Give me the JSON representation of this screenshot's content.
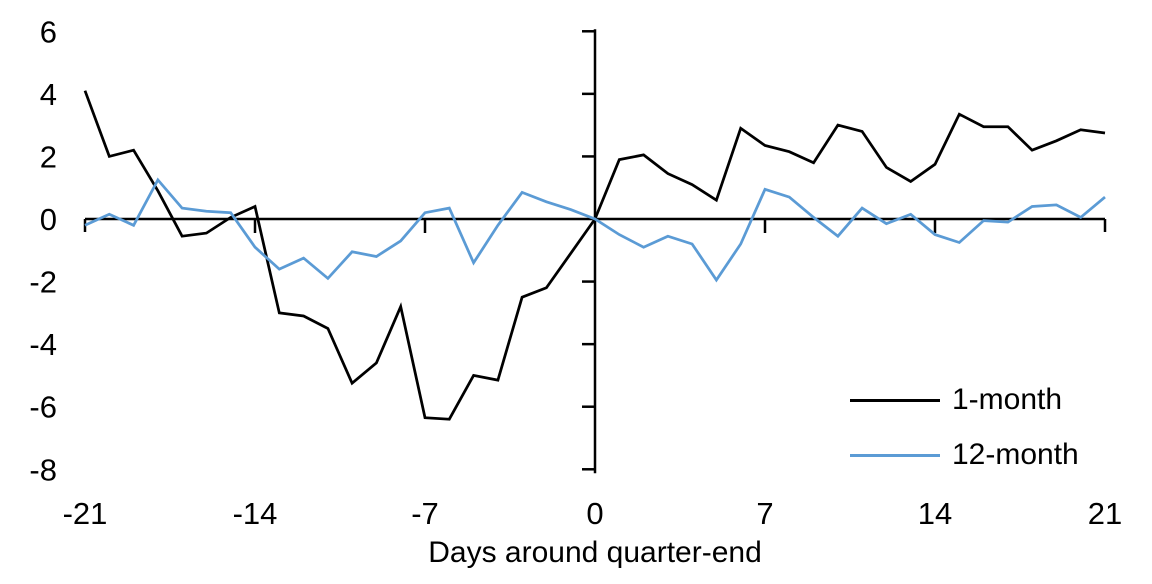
{
  "chart_data": {
    "type": "line",
    "title": "",
    "xlabel": "Days around quarter-end",
    "ylabel": "",
    "grid": false,
    "legend_position": "inside-right-bottom",
    "xlim": [
      -21,
      21
    ],
    "ylim": [
      -8,
      6
    ],
    "yticks": [
      6,
      4,
      2,
      0,
      -2,
      -4,
      -6,
      -8
    ],
    "xtick_labels": [
      -21,
      -14,
      -7,
      0,
      7,
      14,
      21
    ],
    "xtick_marks": [
      -14,
      -7,
      7,
      14
    ],
    "axis_color": "#000000",
    "x": [
      -21,
      -20,
      -19,
      -18,
      -17,
      -16,
      -15,
      -14,
      -13,
      -12,
      -11,
      -10,
      -9,
      -8,
      -7,
      -6,
      -5,
      -4,
      -3,
      -2,
      -1,
      0,
      1,
      2,
      3,
      4,
      5,
      6,
      7,
      8,
      9,
      10,
      11,
      12,
      13,
      14,
      15,
      16,
      17,
      18,
      19,
      20,
      21
    ],
    "series": [
      {
        "name": "1-month",
        "color": "#000000",
        "values": [
          4.1,
          2.0,
          2.2,
          0.9,
          -0.55,
          -0.45,
          0.05,
          0.4,
          -3.0,
          -3.1,
          -3.5,
          -5.25,
          -4.6,
          -2.8,
          -6.35,
          -6.4,
          -5.0,
          -5.15,
          -2.5,
          -2.2,
          -1.1,
          0.0,
          1.9,
          2.05,
          1.45,
          1.1,
          0.6,
          2.9,
          2.35,
          2.15,
          1.8,
          3.0,
          2.8,
          1.65,
          1.2,
          1.75,
          3.35,
          2.95,
          2.95,
          2.2,
          2.5,
          2.85,
          2.75
        ]
      },
      {
        "name": "12-month",
        "color": "#5B9BD5",
        "values": [
          -0.2,
          0.15,
          -0.2,
          1.25,
          0.35,
          0.25,
          0.2,
          -0.9,
          -1.6,
          -1.25,
          -1.9,
          -1.05,
          -1.2,
          -0.7,
          0.2,
          0.35,
          -1.4,
          -0.2,
          0.85,
          0.55,
          0.3,
          0.0,
          -0.5,
          -0.9,
          -0.55,
          -0.8,
          -1.95,
          -0.8,
          0.95,
          0.7,
          0.05,
          -0.55,
          0.35,
          -0.15,
          0.15,
          -0.5,
          -0.75,
          -0.05,
          -0.1,
          0.4,
          0.45,
          0.05,
          0.7
        ]
      }
    ]
  }
}
